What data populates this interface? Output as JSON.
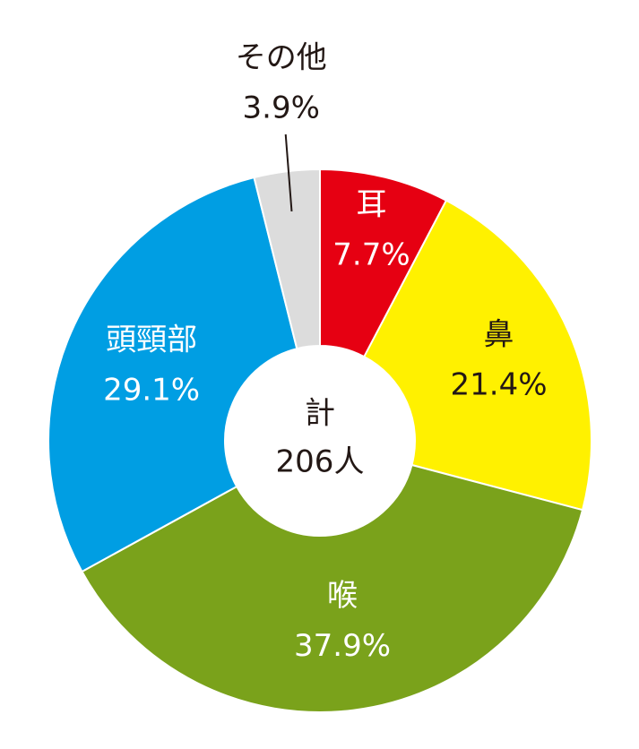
{
  "chart_data": {
    "type": "donut",
    "categories": [
      "耳",
      "鼻",
      "喉",
      "頭頸部",
      "その他"
    ],
    "values": [
      7.7,
      21.4,
      37.9,
      29.1,
      3.9
    ],
    "value_labels": [
      "7.7%",
      "21.4%",
      "37.9%",
      "29.1%",
      "3.9%"
    ],
    "colors": [
      "#e60012",
      "#fff100",
      "#7aa21b",
      "#009ee3",
      "#dcdcdc"
    ],
    "label_colors": [
      "#ffffff",
      "#231815",
      "#ffffff",
      "#ffffff",
      "#231815"
    ],
    "center_text": [
      "計",
      "206人"
    ]
  }
}
